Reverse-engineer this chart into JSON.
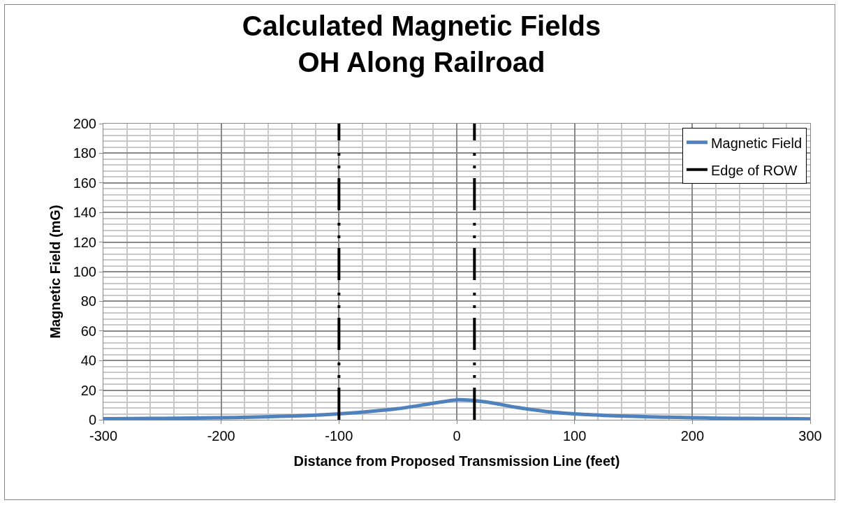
{
  "chart_data": {
    "type": "line",
    "title": "Calculated Magnetic Fields\nOH Along Railroad",
    "xlabel": "Distance from Proposed Transmission Line (feet)",
    "ylabel": "Magnetic Field (mG)",
    "series": [
      {
        "name": "Magnetic Field",
        "color": "#4f81bd",
        "x": [
          -300,
          -275,
          -250,
          -225,
          -200,
          -175,
          -150,
          -125,
          -100,
          -75,
          -50,
          -25,
          0,
          25,
          50,
          75,
          100,
          125,
          150,
          175,
          200,
          225,
          250,
          275,
          300
        ],
        "values": [
          0.7,
          0.8,
          1.0,
          1.2,
          1.4,
          1.8,
          2.3,
          3.0,
          4.0,
          5.5,
          7.5,
          10.5,
          13.5,
          12.0,
          8.5,
          5.7,
          4.0,
          3.0,
          2.3,
          1.8,
          1.4,
          1.1,
          0.9,
          0.8,
          0.6
        ]
      },
      {
        "name": "Edge of ROW",
        "color": "#000000",
        "line_style": "dashdot",
        "x": [
          -100,
          -100,
          null,
          15,
          15
        ],
        "values": [
          0,
          200,
          null,
          0,
          200
        ]
      }
    ],
    "xlim": [
      -300,
      300
    ],
    "xticks": [
      -300,
      -200,
      -100,
      0,
      100,
      200,
      300
    ],
    "ylim": [
      0,
      200
    ],
    "yticks": [
      0,
      20,
      40,
      60,
      80,
      100,
      120,
      140,
      160,
      180,
      200
    ],
    "grid": true,
    "legend": "top right"
  }
}
